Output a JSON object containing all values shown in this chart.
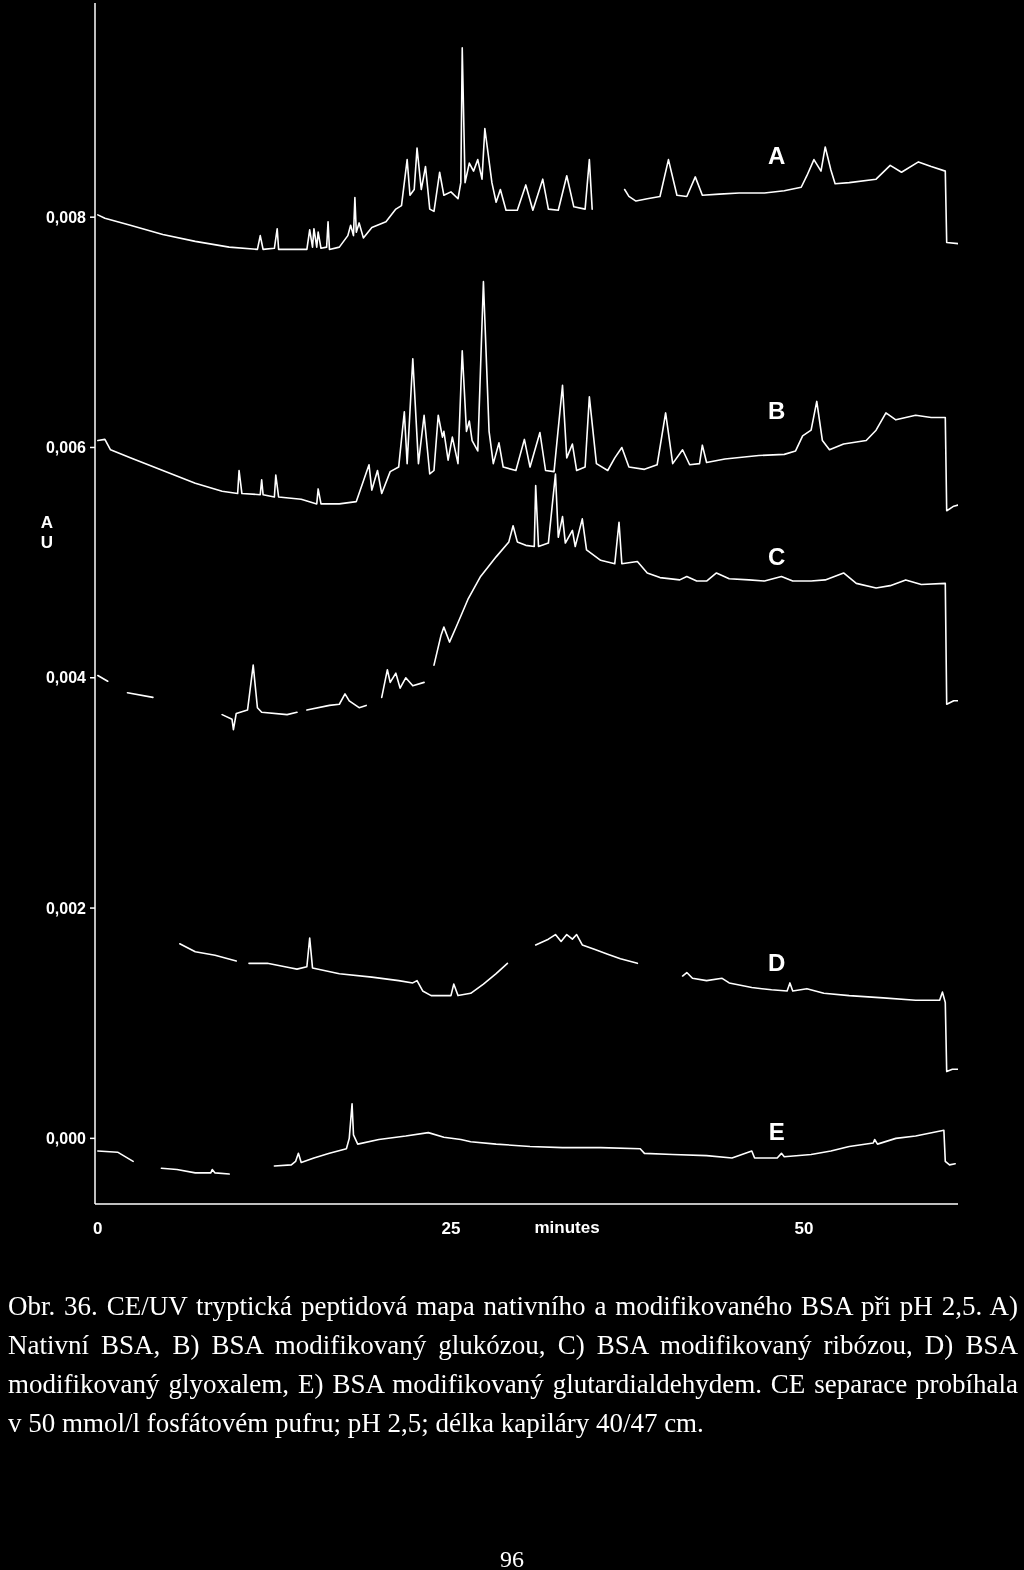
{
  "chart_data": {
    "type": "line",
    "xlabel": "minutes",
    "ylabel": "AU",
    "xlim": [
      -0.2,
      60.9
    ],
    "ylim": [
      -0.00057,
      0.00986
    ],
    "xticks": [
      0,
      25,
      50
    ],
    "yticks": [
      {
        "value": 0,
        "label": "0,000"
      },
      {
        "value": 0.002,
        "label": "0,002"
      },
      {
        "value": 0.004,
        "label": "0,004"
      },
      {
        "value": 0.006,
        "label": "0,006"
      },
      {
        "value": 0.008,
        "label": "0,008"
      }
    ],
    "series": [
      {
        "name": "A",
        "color": "#ffffff",
        "x": [
          0.0,
          0.5,
          2.3,
          4.6,
          6.9,
          9.3,
          11.3,
          11.5,
          11.7,
          12.5,
          12.7,
          12.8,
          14.8,
          15.0,
          15.2,
          15.3,
          15.5,
          15.6,
          15.8,
          16.2,
          16.3,
          16.4,
          17.1,
          17.7,
          17.9,
          18.1,
          18.2,
          18.3,
          18.5,
          18.8,
          19.4,
          20.4,
          21.1,
          21.5,
          21.9,
          22.1,
          22.4,
          22.6,
          22.9,
          23.2,
          23.5,
          23.8,
          24.2,
          24.5,
          25.0,
          25.5,
          25.7,
          25.8,
          26.0,
          26.3,
          26.6,
          26.9,
          27.2,
          27.4,
          27.9,
          28.2,
          28.5,
          28.9,
          29.7,
          30.3,
          30.8,
          31.5,
          31.9,
          32.6,
          33.2,
          33.7,
          34.5,
          34.8,
          35.0,
          36.0,
          37.3,
          37.6,
          38.1,
          38.9,
          39.8,
          40.4,
          41.0,
          41.7,
          42.3,
          42.8,
          44.0,
          45.4,
          47.2,
          48.6,
          49.8,
          50.2,
          50.7,
          51.2,
          51.5,
          51.9,
          52.2,
          53.2,
          55.1,
          56.1,
          56.9,
          58.1,
          59.0,
          60.0,
          60.1,
          60.9
        ],
        "values": [
          0.00802,
          0.00799,
          0.00793,
          0.00785,
          0.00779,
          0.00774,
          0.00772,
          0.00784,
          0.00772,
          0.00773,
          0.0079,
          0.00772,
          0.00772,
          0.00789,
          0.00774,
          0.0079,
          0.00774,
          0.00787,
          0.00773,
          0.00774,
          0.00796,
          0.00772,
          0.00774,
          0.00784,
          0.00793,
          0.00784,
          0.00817,
          0.00787,
          0.00795,
          0.00782,
          0.00791,
          0.00796,
          0.00807,
          0.0081,
          0.0085,
          0.00819,
          0.00824,
          0.0086,
          0.00824,
          0.00844,
          0.00807,
          0.00805,
          0.00839,
          0.00819,
          0.00822,
          0.00816,
          0.0083,
          0.00947,
          0.0083,
          0.00847,
          0.0084,
          0.0085,
          0.00833,
          0.00877,
          0.0083,
          0.00813,
          0.00824,
          0.00806,
          0.00806,
          0.00828,
          0.00806,
          0.00833,
          0.00807,
          0.00806,
          0.00836,
          0.00809,
          0.00807,
          0.0085,
          0.00807,
          null,
          0.00824,
          0.00818,
          0.00814,
          0.00816,
          0.00818,
          0.0085,
          0.00819,
          0.00818,
          0.00835,
          0.00819,
          0.0082,
          0.00821,
          0.00821,
          0.00823,
          0.00826,
          0.00836,
          0.0085,
          0.0084,
          0.00861,
          0.00841,
          0.00829,
          0.0083,
          0.00833,
          0.00845,
          0.00839,
          0.00848,
          0.00844,
          0.0084,
          0.00778,
          0.00777
        ]
      },
      {
        "name": "B",
        "color": "#ffffff",
        "x": [
          0.0,
          0.5,
          0.9,
          2.3,
          4.6,
          6.9,
          8.8,
          9.9,
          10.0,
          10.2,
          11.5,
          11.6,
          11.7,
          12.5,
          12.6,
          12.8,
          14.4,
          15.5,
          15.6,
          15.8,
          17.1,
          18.3,
          19.2,
          19.4,
          19.8,
          20.1,
          20.7,
          21.3,
          21.7,
          21.9,
          22.3,
          22.7,
          23.1,
          23.5,
          23.8,
          24.1,
          24.4,
          24.5,
          24.8,
          25.1,
          25.5,
          25.8,
          26.1,
          26.3,
          26.5,
          26.9,
          27.3,
          27.7,
          28.0,
          28.4,
          28.7,
          29.6,
          30.2,
          30.6,
          31.3,
          31.7,
          32.3,
          32.9,
          33.2,
          33.6,
          33.9,
          34.5,
          34.8,
          35.3,
          36.1,
          36.6,
          37.1,
          37.6,
          38.7,
          39.6,
          40.2,
          40.7,
          41.4,
          41.9,
          42.6,
          42.8,
          43.1,
          44.4,
          46.8,
          48.6,
          49.4,
          49.9,
          50.5,
          50.9,
          51.3,
          51.8,
          52.8,
          54.4,
          55.1,
          55.8,
          56.5,
          57.9,
          59.0,
          60.0,
          60.1,
          60.6,
          60.9
        ],
        "values": [
          0.00606,
          0.00607,
          0.00598,
          0.00591,
          0.0058,
          0.00569,
          0.00562,
          0.0056,
          0.0058,
          0.0056,
          0.00559,
          0.00572,
          0.00559,
          0.00557,
          0.00576,
          0.00557,
          0.00555,
          0.00551,
          0.00564,
          0.00551,
          0.00551,
          0.00553,
          0.00585,
          0.00563,
          0.0058,
          0.0056,
          0.00579,
          0.00583,
          0.00631,
          0.00586,
          0.00677,
          0.00586,
          0.00628,
          0.00577,
          0.0058,
          0.00628,
          0.00609,
          0.00614,
          0.00589,
          0.00609,
          0.00586,
          0.00684,
          0.00614,
          0.00623,
          0.00606,
          0.00597,
          0.00744,
          0.00614,
          0.00586,
          0.00604,
          0.00583,
          0.0058,
          0.00607,
          0.00583,
          0.00613,
          0.0058,
          0.00579,
          0.00654,
          0.00591,
          0.00603,
          0.0058,
          0.00583,
          0.00644,
          0.00586,
          0.0058,
          0.00591,
          0.006,
          0.00583,
          0.00581,
          0.00585,
          0.0063,
          0.00586,
          0.00598,
          0.00585,
          0.00586,
          0.00602,
          0.00587,
          0.0059,
          0.00593,
          0.00594,
          0.00597,
          0.0061,
          0.00615,
          0.0064,
          0.00606,
          0.00598,
          0.00603,
          0.00606,
          0.00615,
          0.0063,
          0.00624,
          0.00628,
          0.00626,
          0.00626,
          0.00545,
          0.00549,
          0.0055
        ]
      },
      {
        "name": "C",
        "color": "#ffffff",
        "x": [
          0.0,
          0.7,
          1.3,
          2.1,
          3.9,
          6.0,
          8.8,
          9.5,
          9.6,
          9.8,
          10.6,
          11.0,
          11.3,
          11.6,
          13.4,
          14.1,
          14.5,
          14.8,
          16.4,
          17.1,
          17.5,
          17.8,
          18.5,
          19.0,
          19.5,
          20.1,
          20.5,
          20.7,
          21.1,
          21.4,
          21.8,
          22.3,
          23.1,
          23.5,
          23.8,
          24.3,
          24.5,
          24.9,
          25.4,
          26.2,
          27.1,
          28.2,
          29.1,
          29.4,
          29.7,
          30.3,
          30.9,
          31.0,
          31.2,
          31.9,
          32.4,
          32.6,
          32.9,
          33.1,
          33.6,
          33.8,
          34.3,
          34.6,
          35.6,
          36.6,
          36.9,
          37.1,
          38.2,
          38.9,
          39.8,
          41.2,
          41.7,
          42.4,
          43.1,
          43.8,
          44.7,
          46.1,
          47.2,
          48.4,
          49.2,
          50.5,
          51.5,
          52.8,
          53.7,
          55.1,
          56.1,
          57.2,
          58.3,
          60.0,
          60.1,
          60.6,
          60.9
        ],
        "values": [
          0.00402,
          0.00397,
          null,
          0.00387,
          0.00383,
          null,
          0.00368,
          0.00364,
          0.00355,
          0.00369,
          0.00372,
          0.00411,
          0.00374,
          0.0037,
          0.00368,
          0.0037,
          null,
          0.00372,
          0.00376,
          0.00377,
          0.00386,
          0.0038,
          0.00374,
          0.00376,
          null,
          0.00383,
          0.00407,
          0.00396,
          0.00404,
          0.00391,
          0.004,
          0.00393,
          0.00396,
          null,
          0.00411,
          0.00437,
          0.00444,
          0.00431,
          0.00445,
          0.00468,
          0.00488,
          0.00505,
          0.00518,
          0.00532,
          0.00518,
          0.00515,
          0.00514,
          0.00567,
          0.00514,
          0.00517,
          0.00577,
          0.00522,
          0.0054,
          0.00517,
          0.00528,
          0.00514,
          0.00538,
          0.00511,
          0.00502,
          0.00499,
          0.00535,
          0.00499,
          0.00501,
          0.00491,
          0.00487,
          0.00485,
          0.00488,
          0.00484,
          0.00484,
          0.00491,
          0.00486,
          0.00485,
          0.00484,
          0.00488,
          0.00484,
          0.00484,
          0.00485,
          0.00491,
          0.00482,
          0.00478,
          0.0048,
          0.00485,
          0.00481,
          0.00482,
          0.00377,
          0.0038,
          0.0038
        ]
      },
      {
        "name": "D",
        "color": "#ffffff",
        "x": [
          5.8,
          6.9,
          8.3,
          9.8,
          10.3,
          10.7,
          12.0,
          13.7,
          14.1,
          14.8,
          15.0,
          15.2,
          17.1,
          19.4,
          21.3,
          22.3,
          22.6,
          23.0,
          23.6,
          25.0,
          25.2,
          25.5,
          26.4,
          27.3,
          28.2,
          29.0,
          29.5,
          31.0,
          31.9,
          32.4,
          32.8,
          33.2,
          33.6,
          33.9,
          34.3,
          35.2,
          36.1,
          37.0,
          38.2,
          39.5,
          41.4,
          41.7,
          42.1,
          43.1,
          44.2,
          44.7,
          46.3,
          47.7,
          48.8,
          49.0,
          49.2,
          50.2,
          51.4,
          53.2,
          55.6,
          57.9,
          59.6,
          59.8,
          60.0,
          60.1,
          60.5,
          60.9
        ],
        "values": [
          0.00169,
          0.00162,
          0.00159,
          0.00154,
          null,
          0.00152,
          0.00152,
          0.00148,
          0.00147,
          0.00149,
          0.00174,
          0.00148,
          0.00143,
          0.0014,
          0.00137,
          0.00135,
          0.00137,
          0.00128,
          0.00124,
          0.00124,
          0.00134,
          0.00124,
          0.00126,
          0.00134,
          0.00143,
          0.00152,
          null,
          0.00168,
          0.00173,
          0.00177,
          0.00171,
          0.00177,
          0.00173,
          0.00177,
          0.00168,
          0.00164,
          0.0016,
          0.00156,
          0.00152,
          null,
          0.00141,
          0.00144,
          0.00139,
          0.00137,
          0.00139,
          0.00135,
          0.00131,
          0.00129,
          0.00128,
          0.00135,
          0.00128,
          0.0013,
          0.00126,
          0.00124,
          0.00122,
          0.0012,
          0.0012,
          0.00127,
          0.00118,
          0.00058,
          0.0006,
          0.0006
        ]
      },
      {
        "name": "E",
        "color": "#ffffff",
        "x": [
          0.0,
          1.4,
          2.5,
          3.5,
          4.5,
          5.6,
          6.9,
          8.0,
          8.1,
          8.3,
          9.3,
          11.0,
          12.5,
          13.7,
          14.0,
          14.2,
          14.4,
          15.3,
          16.4,
          17.6,
          17.8,
          18.0,
          18.1,
          18.4,
          19.9,
          21.8,
          23.4,
          24.5,
          25.7,
          26.4,
          28.2,
          30.6,
          32.9,
          35.6,
          38.4,
          38.7,
          40.7,
          43.1,
          44.9,
          46.3,
          46.5,
          48.1,
          48.4,
          48.6,
          50.5,
          51.9,
          53.2,
          54.9,
          55.0,
          55.2,
          56.5,
          57.9,
          59.9,
          60.0,
          60.3,
          60.7
        ],
        "values": [
          -0.00011,
          -0.00012,
          -0.0002,
          null,
          -0.00026,
          -0.00027,
          -0.0003,
          -0.0003,
          -0.00027,
          -0.0003,
          -0.00031,
          null,
          -0.00024,
          -0.00023,
          -0.0002,
          -0.00013,
          -0.00021,
          -0.00017,
          -0.00013,
          -9e-05,
          0,
          0.0003,
          3e-05,
          -5e-05,
          -1e-05,
          2e-05,
          5e-05,
          1e-05,
          -1e-05,
          -3e-05,
          -5e-05,
          -7e-05,
          -8e-05,
          -8e-05,
          -9e-05,
          -0.00013,
          -0.00014,
          -0.00015,
          -0.00017,
          -0.00011,
          -0.00017,
          -0.00017,
          -0.00013,
          -0.00016,
          -0.00014,
          -0.00011,
          -7e-05,
          -4e-05,
          -1e-05,
          -5e-05,
          0,
          2e-05,
          7e-05,
          -0.0002,
          -0.00023,
          -0.00022
        ]
      }
    ],
    "annotations": [
      "Obr. 36. CE/UV tryptická peptidová mapa nativního a modifikovaného BSA při pH 2,5. A) Nativní BSA, B) BSA modifikovaný glukózou, C) BSA modifikovaný ribózou, D) BSA modifikovaný glyoxalem, E) BSA modifikovaný glutardialdehydem. CE separace probíhala v 50 mmol/l fosfátovém pufru; pH 2,5; délka kapiláry 40/47 cm.",
      "96"
    ]
  }
}
